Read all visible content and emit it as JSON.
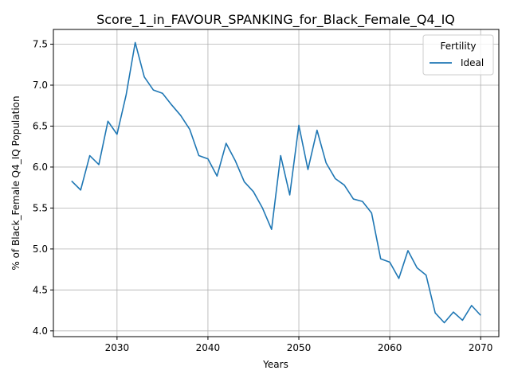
{
  "chart_data": {
    "type": "line",
    "title": "Score_1_in_FAVOUR_SPANKING_for_Black_Female_Q4_IQ",
    "xlabel": "Years",
    "ylabel": "% of Black_Female Q4_IQ Population",
    "xlim": [
      2023,
      2072
    ],
    "ylim": [
      3.93,
      7.68
    ],
    "xticks": [
      2030,
      2040,
      2050,
      2060,
      2070
    ],
    "yticks": [
      4.0,
      4.5,
      5.0,
      5.5,
      6.0,
      6.5,
      7.0,
      7.5
    ],
    "grid": true,
    "legend": {
      "title": "Fertility",
      "position": "top-right"
    },
    "series": [
      {
        "name": "Ideal",
        "color": "#1f77b4",
        "x": [
          2025,
          2026,
          2027,
          2028,
          2029,
          2030,
          2031,
          2032,
          2033,
          2034,
          2035,
          2036,
          2037,
          2038,
          2039,
          2040,
          2041,
          2042,
          2043,
          2044,
          2045,
          2046,
          2047,
          2048,
          2049,
          2050,
          2051,
          2052,
          2053,
          2054,
          2055,
          2056,
          2057,
          2058,
          2059,
          2060,
          2061,
          2062,
          2063,
          2064,
          2065,
          2066,
          2067,
          2068,
          2069,
          2070
        ],
        "y": [
          5.83,
          5.72,
          6.14,
          6.03,
          6.56,
          6.4,
          6.88,
          7.52,
          7.1,
          6.94,
          6.9,
          6.76,
          6.63,
          6.46,
          6.14,
          6.1,
          5.89,
          6.29,
          6.08,
          5.82,
          5.7,
          5.5,
          5.24,
          6.14,
          5.66,
          6.51,
          5.97,
          6.45,
          6.05,
          5.86,
          5.78,
          5.61,
          5.58,
          5.44,
          4.88,
          4.84,
          4.64,
          4.98,
          4.77,
          4.68,
          4.22,
          4.1,
          4.23,
          4.13,
          4.31,
          4.19
        ]
      }
    ]
  }
}
